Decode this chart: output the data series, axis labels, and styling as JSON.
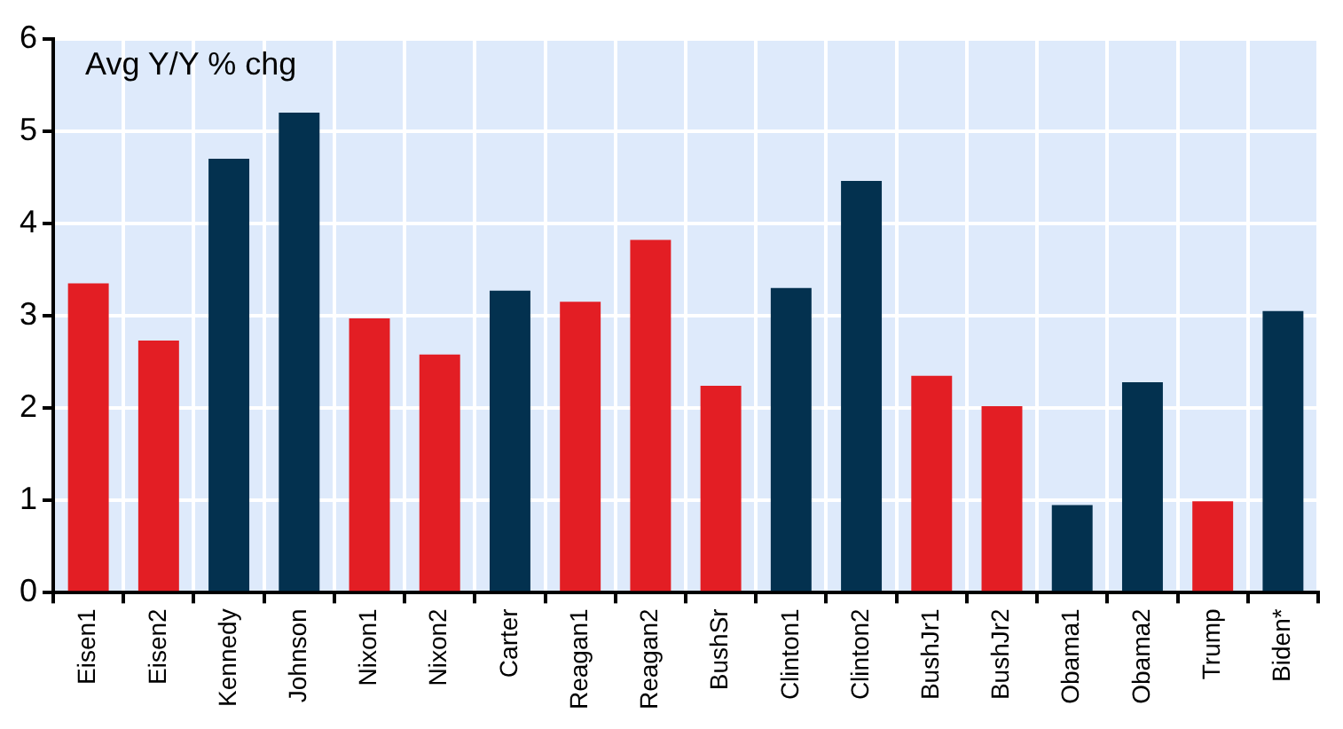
{
  "chart_data": {
    "type": "bar",
    "ylabel": "Avg Y/Y % chg",
    "categories": [
      "Eisen1",
      "Eisen2",
      "Kennedy",
      "Johnson",
      "Nixon1",
      "Nixon2",
      "Carter",
      "Reagan1",
      "Reagan2",
      "BushSr",
      "Clinton1",
      "Clinton2",
      "BushJr1",
      "BushJr2",
      "Obama1",
      "Obama2",
      "Trump",
      "Biden*"
    ],
    "values": [
      3.35,
      2.73,
      4.7,
      5.2,
      2.97,
      2.58,
      3.27,
      3.15,
      3.82,
      2.24,
      3.3,
      4.46,
      2.35,
      2.02,
      0.95,
      2.28,
      0.99,
      3.05
    ],
    "colors": [
      "#e31e24",
      "#e31e24",
      "#03314f",
      "#03314f",
      "#e31e24",
      "#e31e24",
      "#03314f",
      "#e31e24",
      "#e31e24",
      "#e31e24",
      "#03314f",
      "#03314f",
      "#e31e24",
      "#e31e24",
      "#03314f",
      "#03314f",
      "#e31e24",
      "#03314f"
    ],
    "ylim": [
      0,
      6
    ],
    "yticks": [
      0,
      1,
      2,
      3,
      4,
      5,
      6
    ],
    "grid": true
  }
}
